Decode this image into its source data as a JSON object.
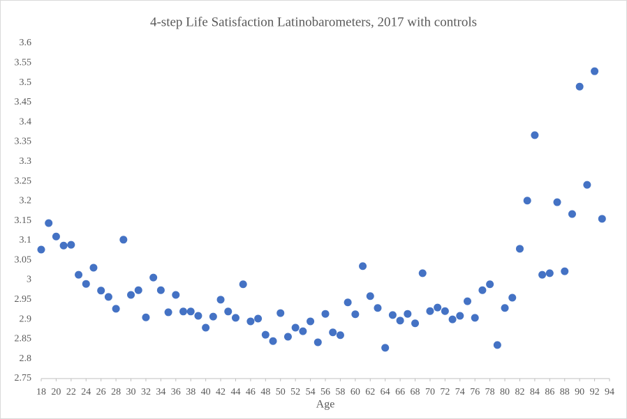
{
  "chart_data": {
    "type": "scatter",
    "title": "4-step Life Satisfaction Latinobarometers, 2017 with controls",
    "xlabel": "Age",
    "color": "#4472c4",
    "grid": false,
    "x": [
      18,
      19,
      20,
      21,
      22,
      23,
      24,
      25,
      26,
      27,
      28,
      29,
      30,
      31,
      32,
      33,
      34,
      35,
      36,
      37,
      38,
      39,
      40,
      41,
      42,
      43,
      44,
      45,
      46,
      47,
      48,
      49,
      50,
      51,
      52,
      53,
      54,
      55,
      56,
      57,
      58,
      59,
      60,
      61,
      62,
      63,
      64,
      65,
      66,
      67,
      68,
      69,
      70,
      71,
      72,
      73,
      74,
      75,
      76,
      77,
      78,
      79,
      80,
      81,
      82,
      83,
      84,
      85,
      86,
      87,
      88,
      89,
      90,
      91,
      92,
      93
    ],
    "values": [
      3.077,
      3.144,
      3.11,
      3.087,
      3.089,
      3.013,
      2.99,
      3.031,
      2.973,
      2.957,
      2.927,
      3.102,
      2.962,
      2.974,
      2.905,
      3.006,
      2.974,
      2.918,
      2.962,
      2.92,
      2.92,
      2.909,
      2.879,
      2.907,
      2.95,
      2.92,
      2.904,
      2.989,
      2.895,
      2.902,
      2.861,
      2.845,
      2.916,
      2.856,
      2.879,
      2.87,
      2.895,
      2.842,
      2.914,
      2.867,
      2.86,
      2.943,
      2.913,
      3.035,
      2.959,
      2.929,
      2.828,
      2.911,
      2.897,
      2.914,
      2.89,
      3.017,
      2.921,
      2.93,
      2.921,
      2.9,
      2.909,
      2.946,
      2.904,
      2.974,
      2.989,
      2.835,
      2.929,
      2.955,
      3.079,
      3.201,
      3.367,
      3.013,
      3.017,
      3.197,
      3.022,
      3.167,
      3.49,
      3.241,
      3.529,
      3.155
    ],
    "xlim": [
      18,
      94
    ],
    "xticks": [
      18,
      20,
      22,
      24,
      26,
      28,
      30,
      32,
      34,
      36,
      38,
      40,
      42,
      44,
      46,
      48,
      50,
      52,
      54,
      56,
      58,
      60,
      62,
      64,
      66,
      68,
      70,
      72,
      74,
      76,
      78,
      80,
      82,
      84,
      86,
      88,
      90,
      92,
      94
    ],
    "ylim": [
      2.75,
      3.6
    ],
    "yticks": [
      2.75,
      2.8,
      2.85,
      2.9,
      2.95,
      3,
      3.05,
      3.1,
      3.15,
      3.2,
      3.25,
      3.3,
      3.35,
      3.4,
      3.45,
      3.5,
      3.55,
      3.6
    ]
  }
}
